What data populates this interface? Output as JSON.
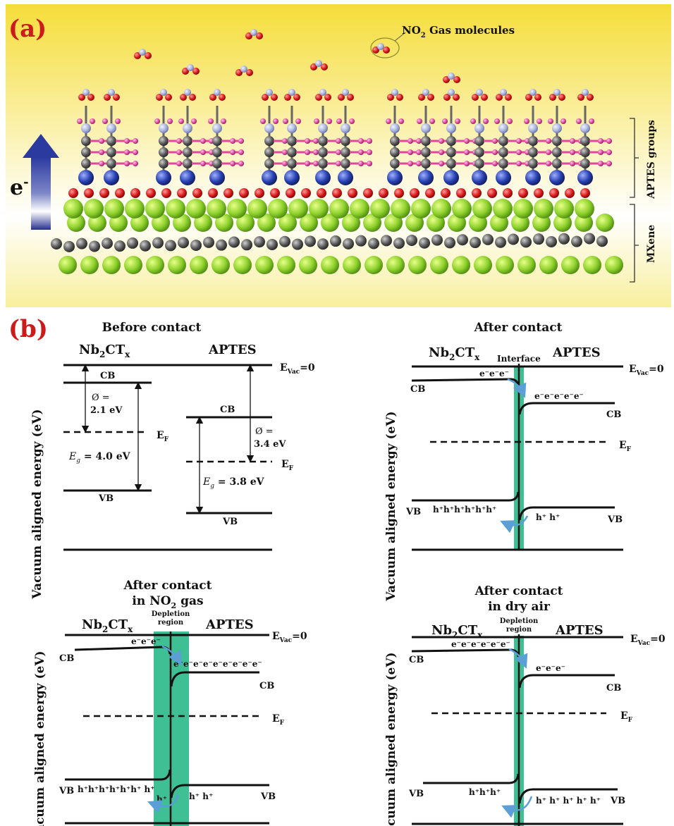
{
  "panel_a": {
    "label": "(a)",
    "gas_label_prefix": "NO",
    "gas_label_sub": "2",
    "gas_label_suffix": " Gas molecules",
    "electron_label": "e",
    "electron_sup": "-",
    "bracket_aptes": "APTES groups",
    "bracket_mxene": "MXene"
  },
  "panel_b": {
    "label": "(b)",
    "y_axis_label": "Vacuum aligned energy (eV)",
    "before": {
      "title": "Before contact",
      "left_material_main": "Nb",
      "left_material_sub1": "2",
      "left_material_mid": "CT",
      "left_material_sub2": "x",
      "right_material": "APTES",
      "evac_main": "E",
      "evac_sub": "Vac",
      "evac_tail": "=0",
      "cb": "CB",
      "vb": "VB",
      "ef_main": "E",
      "ef_sub": "F",
      "phi_left": "Ø =",
      "phi_left_val": "2.1 eV",
      "eg_left": "E",
      "eg_left_sub": "g",
      "eg_left_val": " = 4.0 eV",
      "phi_right": "Ø =",
      "phi_right_val": "3.4 eV",
      "eg_right": "E",
      "eg_right_sub": "g",
      "eg_right_val": " = 3.8 eV"
    },
    "after": {
      "title": "After contact",
      "interface": "Interface",
      "electrons_left": "e⁻e⁻e⁻",
      "electrons_right": "e⁻e⁻e⁻e⁻e⁻",
      "holes_left": "h⁺h⁺h⁺h⁺h⁺h⁺",
      "holes_right": "h⁺ h⁺"
    },
    "no2": {
      "title_line1": "After contact",
      "title_line2_main": "in NO",
      "title_line2_sub": "2",
      "title_line2_tail": " gas",
      "depletion_line1": "Depletion",
      "depletion_line2": "region",
      "electrons_left": "e⁻e⁻e⁻",
      "electrons_right": "e⁻e⁻e⁻e⁻e⁻e⁻e⁻e⁻e⁻",
      "holes_left": "h⁺h⁺h⁺h⁺h⁺h⁺ h⁺",
      "holes_extra": "h⁺",
      "holes_right": "h⁺ h⁺"
    },
    "dry": {
      "title_line1": "After contact",
      "title_line2": "in dry air",
      "depletion_line1": "Depletion",
      "depletion_line2": "region",
      "electrons_left": "e⁻e⁻e⁻e⁻e⁻e⁻",
      "electrons_right": "e⁻e⁻e⁻",
      "holes_left": "h⁺h⁺h⁺",
      "holes_right": "h⁺ h⁺  h⁺ h⁺ h⁺"
    }
  },
  "colors": {
    "band_line": "#111111",
    "depletion_fill": "#3fbf94",
    "arrow_blue": "#5b9fd6",
    "electron_arrow": "#2a3f9c"
  }
}
